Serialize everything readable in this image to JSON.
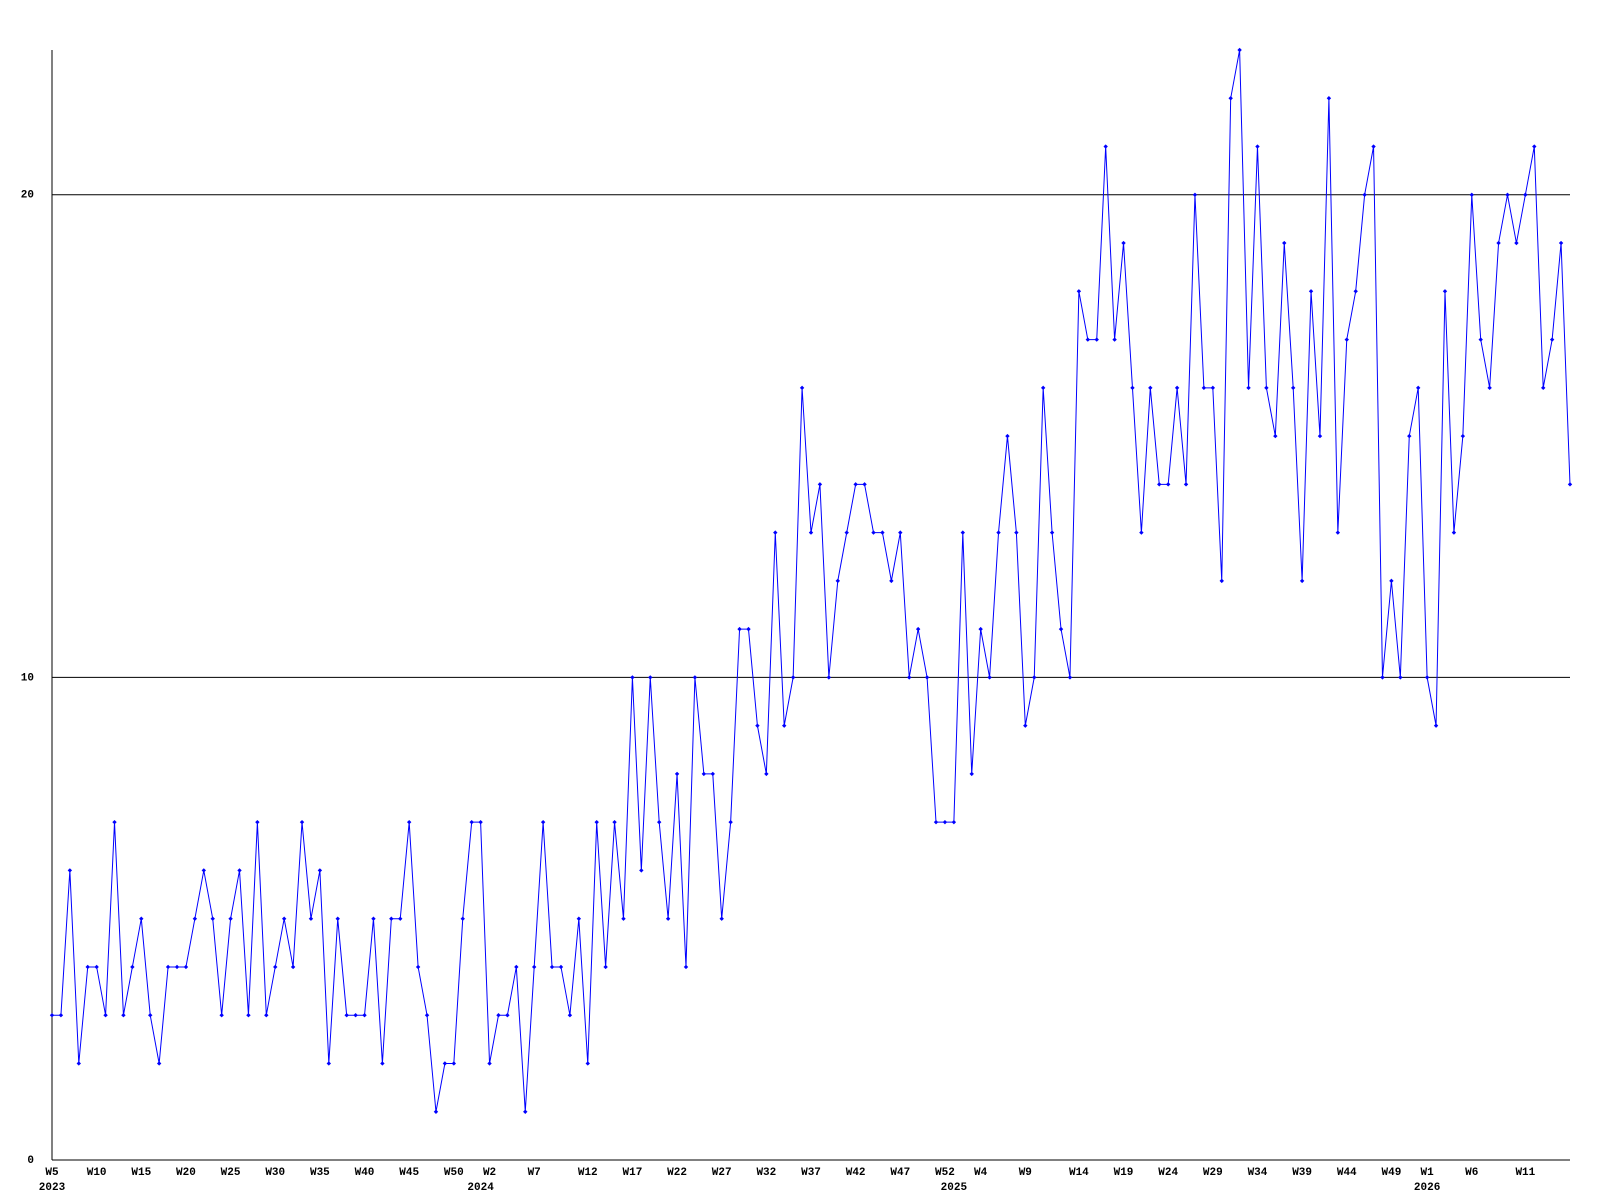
{
  "chart_data": {
    "type": "line",
    "categories": [
      "W5",
      null,
      null,
      null,
      null,
      "W10",
      null,
      null,
      null,
      null,
      "W15",
      null,
      null,
      null,
      null,
      "W20",
      null,
      null,
      null,
      null,
      "W25",
      null,
      null,
      null,
      null,
      "W30",
      null,
      null,
      null,
      null,
      "W35",
      null,
      null,
      null,
      null,
      "W40",
      null,
      null,
      null,
      null,
      "W45",
      null,
      null,
      null,
      null,
      "W50",
      null,
      null,
      null,
      "W2",
      null,
      null,
      null,
      null,
      "W7",
      null,
      null,
      null,
      null,
      null,
      "W12",
      null,
      null,
      null,
      null,
      "W17",
      null,
      null,
      null,
      null,
      "W22",
      null,
      null,
      null,
      null,
      "W27",
      null,
      null,
      null,
      null,
      "W32",
      null,
      null,
      null,
      null,
      "W37",
      null,
      null,
      null,
      null,
      "W42",
      null,
      null,
      null,
      null,
      "W47",
      null,
      null,
      null,
      null,
      "W52",
      null,
      null,
      null,
      "W4",
      null,
      null,
      null,
      null,
      "W9",
      null,
      null,
      null,
      null,
      null,
      "W14",
      null,
      null,
      null,
      null,
      "W19",
      null,
      null,
      null,
      null,
      "W24",
      null,
      null,
      null,
      null,
      "W29",
      null,
      null,
      null,
      null,
      "W34",
      null,
      null,
      null,
      null,
      "W39",
      null,
      null,
      null,
      null,
      "W44",
      null,
      null,
      null,
      null,
      "W49",
      null,
      null,
      null,
      "W1",
      null,
      null,
      null,
      null,
      "W6",
      null,
      null,
      null,
      null,
      null,
      "W11",
      null,
      null,
      null,
      null,
      null
    ],
    "year_labels": [
      "2023",
      null,
      null,
      null,
      null,
      null,
      null,
      null,
      null,
      null,
      null,
      null,
      null,
      null,
      null,
      null,
      null,
      null,
      null,
      null,
      null,
      null,
      null,
      null,
      null,
      null,
      null,
      null,
      null,
      null,
      null,
      null,
      null,
      null,
      null,
      null,
      null,
      null,
      null,
      null,
      null,
      null,
      null,
      null,
      null,
      null,
      null,
      null,
      "2024",
      null,
      null,
      null,
      null,
      null,
      null,
      null,
      null,
      null,
      null,
      null,
      null,
      null,
      null,
      null,
      null,
      null,
      null,
      null,
      null,
      null,
      null,
      null,
      null,
      null,
      null,
      null,
      null,
      null,
      null,
      null,
      null,
      null,
      null,
      null,
      null,
      null,
      null,
      null,
      null,
      null,
      null,
      null,
      null,
      null,
      null,
      null,
      null,
      null,
      null,
      null,
      null,
      "2025",
      null,
      null,
      null,
      null,
      null,
      null,
      null,
      null,
      null,
      null,
      null,
      null,
      null,
      null,
      null,
      null,
      null,
      null,
      null,
      null,
      null,
      null,
      null,
      null,
      null,
      null,
      null,
      null,
      null,
      null,
      null,
      null,
      null,
      null,
      null,
      null,
      null,
      null,
      null,
      null,
      null,
      null,
      null,
      null,
      null,
      null,
      null,
      null,
      null,
      null,
      null,
      null,
      "2026",
      null,
      null,
      null,
      null,
      null,
      null,
      null,
      null,
      null,
      null,
      null,
      null,
      null,
      null,
      null,
      null
    ],
    "values": [
      3,
      3,
      6,
      2,
      4,
      4,
      3,
      7,
      3,
      4,
      5,
      3,
      2,
      4,
      4,
      4,
      5,
      6,
      5,
      3,
      5,
      6,
      3,
      7,
      3,
      4,
      5,
      4,
      7,
      5,
      6,
      2,
      5,
      3,
      3,
      3,
      5,
      2,
      5,
      5,
      7,
      4,
      3,
      1,
      2,
      2,
      5,
      7,
      7,
      2,
      3,
      3,
      4,
      1,
      4,
      7,
      4,
      4,
      3,
      5,
      2,
      7,
      4,
      7,
      5,
      10,
      6,
      10,
      7,
      5,
      8,
      4,
      10,
      8,
      8,
      5,
      7,
      11,
      11,
      9,
      8,
      13,
      9,
      10,
      16,
      13,
      14,
      10,
      12,
      13,
      14,
      14,
      13,
      13,
      12,
      13,
      10,
      11,
      10,
      7,
      7,
      7,
      13,
      8,
      11,
      10,
      13,
      15,
      13,
      9,
      10,
      16,
      13,
      11,
      10,
      18,
      17,
      17,
      21,
      17,
      19,
      16,
      13,
      16,
      14,
      14,
      16,
      14,
      20,
      16,
      16,
      12,
      22,
      23,
      16,
      21,
      16,
      15,
      19,
      16,
      12,
      18,
      15,
      22,
      13,
      17,
      18,
      20,
      21,
      10,
      12,
      10,
      15,
      16,
      10,
      9,
      18,
      13,
      15,
      20,
      17,
      16,
      19,
      20,
      19,
      20,
      21,
      16,
      17,
      19,
      14
    ],
    "color": "#0000ff",
    "ylim": [
      0,
      23
    ],
    "yticks": [
      0,
      10,
      20
    ],
    "grid": true
  }
}
